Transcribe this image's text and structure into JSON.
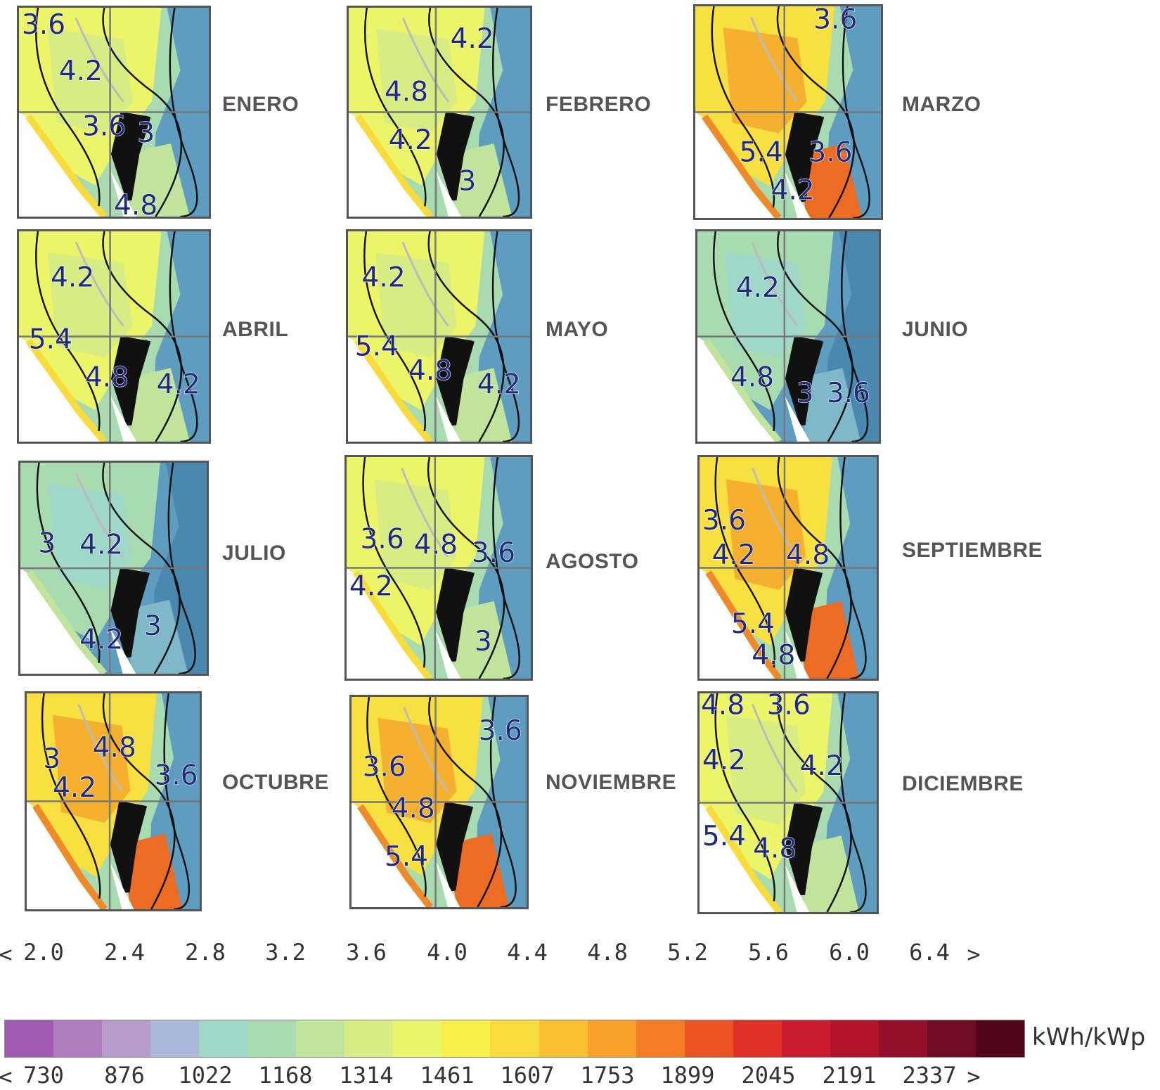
{
  "months": [
    "ENERO",
    "FEBRERO",
    "MARZO",
    "ABRIL",
    "MAYO",
    "JUNIO",
    "JULIO",
    "AGOSTO",
    "SEPTIEMBRE",
    "OCTUBRE",
    "NOVIEMBRE",
    "DICIEMBRE"
  ],
  "contour_labels": [
    [
      "3.6",
      "4.2",
      "4.8",
      "3.6",
      "3"
    ],
    [
      "4.2",
      "4.8",
      "4.2",
      "3"
    ],
    [
      "3.6",
      "5.4",
      "3.6",
      "4.2"
    ],
    [
      "4.2",
      "5.4",
      "4.8",
      "4.2"
    ],
    [
      "4.2",
      "5.4",
      "4.8",
      "4.2"
    ],
    [
      "4.2",
      "4.8",
      "3",
      "3.6"
    ],
    [
      "4.2",
      "3",
      "4.2",
      "3"
    ],
    [
      "3.6",
      "4.8",
      "3.6",
      "4.2",
      "3"
    ],
    [
      "3.6",
      "4.2",
      "4.8",
      "5.4",
      "4.8"
    ],
    [
      "4.8",
      "3",
      "4.2",
      "3.6"
    ],
    [
      "3.6",
      "3.6",
      "4.8",
      "5.4"
    ],
    [
      "4.8",
      "3.6",
      "4.2",
      "4.2",
      "5.4",
      "4.8"
    ]
  ],
  "legend": {
    "daily_ticks": [
      "2.0",
      "2.4",
      "2.8",
      "3.2",
      "3.6",
      "4.0",
      "4.4",
      "4.8",
      "5.2",
      "5.6",
      "6.0",
      "6.4"
    ],
    "annual_ticks": [
      "730",
      "876",
      "1022",
      "1168",
      "1314",
      "1461",
      "1607",
      "1753",
      "1899",
      "2045",
      "2191",
      "2337"
    ],
    "less_than": "<",
    "greater_than": ">",
    "unit": "kWh/kWp",
    "colors": [
      "#a05cb0",
      "#b07cc0",
      "#b89ccc",
      "#a9b8d8",
      "#9fd8c8",
      "#a8dcb0",
      "#c0e49c",
      "#d8ec84",
      "#ecf468",
      "#f6f048",
      "#f8dc3c",
      "#f8c030",
      "#f8a028",
      "#f47c24",
      "#ec5424",
      "#e03028",
      "#cc1c30",
      "#b4142c",
      "#94102a",
      "#700c24",
      "#500818"
    ]
  }
}
